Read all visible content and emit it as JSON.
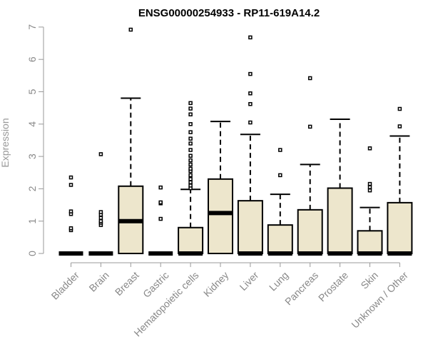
{
  "chart_data": {
    "type": "boxplot",
    "title": "ENSG00000254933 - RP11-619A14.2",
    "xlabel": "",
    "ylabel": "Expression",
    "ylim": [
      0,
      7
    ],
    "yticks": [
      "0",
      "1",
      "2",
      "3",
      "4",
      "5",
      "6",
      "7"
    ],
    "grid": false,
    "box_color": "#ede6cc",
    "categories": [
      "Bladder",
      "Brain",
      "Breast",
      "Gastric",
      "Hematopoietic cells",
      "Kidney",
      "Liver",
      "Lung",
      "Pancreas",
      "Prostate",
      "Skin",
      "Unknown / Other"
    ],
    "boxes": [
      {
        "q1": 0,
        "median": 0,
        "q3": 0,
        "whisker_low": 0,
        "whisker_high": 0,
        "outliers": [
          0.72,
          0.78,
          1.22,
          1.3,
          2.12,
          2.35
        ]
      },
      {
        "q1": 0,
        "median": 0,
        "q3": 0,
        "whisker_low": 0,
        "whisker_high": 0,
        "outliers": [
          0.88,
          0.95,
          1.0,
          1.1,
          1.2,
          1.28,
          3.07
        ]
      },
      {
        "q1": 0,
        "median": 1.0,
        "q3": 2.08,
        "whisker_low": 0,
        "whisker_high": 4.8,
        "outliers": [
          6.92
        ]
      },
      {
        "q1": 0,
        "median": 0,
        "q3": 0,
        "whisker_low": 0,
        "whisker_high": 0,
        "outliers": [
          1.07,
          1.55,
          1.58,
          2.04
        ]
      },
      {
        "q1": 0,
        "median": 0,
        "q3": 0.8,
        "whisker_low": 0,
        "whisker_high": 1.98,
        "outliers": [
          2.02,
          2.1,
          2.2,
          2.3,
          2.42,
          2.55,
          2.62,
          2.75,
          2.88,
          3.02,
          3.2,
          3.4,
          3.55,
          3.75,
          4.0,
          4.3,
          4.48,
          4.65
        ]
      },
      {
        "q1": 0,
        "median": 1.25,
        "q3": 2.3,
        "whisker_low": 0,
        "whisker_high": 4.08,
        "outliers": []
      },
      {
        "q1": 0,
        "median": 0,
        "q3": 1.63,
        "whisker_low": 0,
        "whisker_high": 3.68,
        "outliers": [
          4.05,
          4.62,
          4.95,
          5.55,
          6.68
        ]
      },
      {
        "q1": 0,
        "median": 0,
        "q3": 0.88,
        "whisker_low": 0,
        "whisker_high": 1.83,
        "outliers": [
          2.42,
          3.2
        ]
      },
      {
        "q1": 0,
        "median": 0,
        "q3": 1.35,
        "whisker_low": 0,
        "whisker_high": 2.75,
        "outliers": [
          3.92,
          5.42
        ]
      },
      {
        "q1": 0,
        "median": 0,
        "q3": 2.02,
        "whisker_low": 0,
        "whisker_high": 4.15,
        "outliers": []
      },
      {
        "q1": 0,
        "median": 0,
        "q3": 0.7,
        "whisker_low": 0,
        "whisker_high": 1.42,
        "outliers": [
          1.95,
          2.05,
          2.15,
          3.25
        ]
      },
      {
        "q1": 0,
        "median": 0,
        "q3": 1.57,
        "whisker_low": 0,
        "whisker_high": 3.63,
        "outliers": [
          3.93,
          4.47
        ]
      }
    ]
  }
}
